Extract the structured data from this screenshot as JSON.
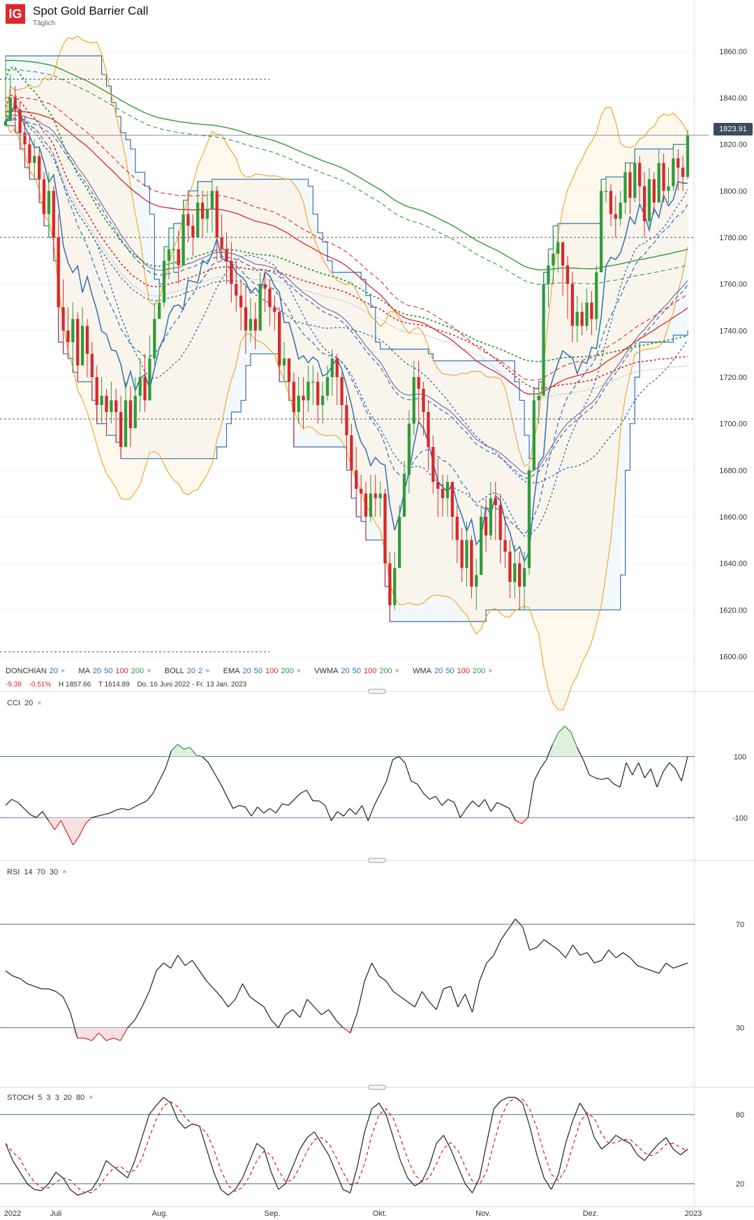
{
  "header": {
    "logo_text": "IG",
    "title": "Spot Gold Barrier Call",
    "subtitle": "Täglich"
  },
  "current_price": "1823.91",
  "legend": {
    "donchian": {
      "label": "DONCHIAN",
      "params": [
        "20"
      ]
    },
    "ma": {
      "label": "MA",
      "params": [
        "20",
        "50",
        "100",
        "200"
      ]
    },
    "boll": {
      "label": "BOLL",
      "params": [
        "20",
        "2"
      ]
    },
    "ema": {
      "label": "EMA",
      "params": [
        "20",
        "50",
        "100",
        "200"
      ]
    },
    "vwma": {
      "label": "VWMA",
      "params": [
        "20",
        "50",
        "100",
        "200"
      ]
    },
    "wma": {
      "label": "WMA",
      "params": [
        "20",
        "50",
        "100",
        "200"
      ]
    },
    "close_icon": "×"
  },
  "stats": {
    "change": "-9.38",
    "change_pct": "-0.51%",
    "high": "H 1857.66",
    "low": "T 1614.89",
    "range": "Do. 16 Juni 2022 - Fr. 13 Jan. 2023"
  },
  "panels": {
    "cci": {
      "label": "CCI",
      "params": [
        "20"
      ]
    },
    "rsi": {
      "label": "RSI",
      "params": [
        "14",
        "70",
        "30"
      ]
    },
    "stoch": {
      "label": "STOCH",
      "params": [
        "5",
        "3",
        "3",
        "20",
        "80"
      ]
    }
  },
  "colors": {
    "up": "#2f9b3a",
    "down": "#d8282a",
    "blue": "#2d6fb5",
    "red": "#d8282a",
    "green": "#2f9b3a",
    "orange": "#f0a830",
    "purple": "#7a6ca8",
    "donchian_fill": "#eaf2fa"
  },
  "chart_data": [
    {
      "type": "candlestick",
      "title": "Spot Gold Barrier Call",
      "ylim": [
        1585,
        1882
      ],
      "y_ticks": [
        1600,
        1620,
        1640,
        1660,
        1680,
        1700,
        1720,
        1740,
        1760,
        1780,
        1800,
        1820,
        1840,
        1860
      ],
      "x_labels": [
        "2022",
        "Juli",
        "Aug.",
        "Sep.",
        "Okt.",
        "Nov.",
        "Dez.",
        "2023"
      ],
      "reference_levels": [
        1848,
        1780,
        1702,
        1602
      ],
      "close": [
        1830,
        1840,
        1835,
        1825,
        1820,
        1812,
        1815,
        1805,
        1790,
        1800,
        1780,
        1750,
        1740,
        1735,
        1745,
        1725,
        1742,
        1730,
        1720,
        1708,
        1712,
        1705,
        1710,
        1705,
        1690,
        1710,
        1698,
        1712,
        1720,
        1710,
        1728,
        1745,
        1752,
        1770,
        1775,
        1775,
        1768,
        1790,
        1785,
        1780,
        1795,
        1788,
        1792,
        1800,
        1780,
        1775,
        1770,
        1760,
        1755,
        1750,
        1740,
        1745,
        1740,
        1760,
        1758,
        1750,
        1748,
        1725,
        1728,
        1718,
        1705,
        1712,
        1710,
        1718,
        1718,
        1708,
        1712,
        1720,
        1728,
        1720,
        1708,
        1695,
        1680,
        1672,
        1670,
        1660,
        1670,
        1668,
        1670,
        1640,
        1622,
        1638,
        1660,
        1678,
        1700,
        1720,
        1715,
        1705,
        1690,
        1675,
        1672,
        1668,
        1675,
        1660,
        1650,
        1638,
        1650,
        1630,
        1635,
        1660,
        1652,
        1668,
        1665,
        1650,
        1645,
        1632,
        1640,
        1630,
        1638,
        1680,
        1710,
        1712,
        1760,
        1768,
        1773,
        1778,
        1768,
        1760,
        1742,
        1748,
        1742,
        1752,
        1745,
        1765,
        1800,
        1800,
        1790,
        1788,
        1795,
        1808,
        1797,
        1812,
        1802,
        1787,
        1805,
        1795,
        1812,
        1800,
        1802,
        1814,
        1810,
        1806,
        1824
      ],
      "high": [
        1858,
        1850,
        1845,
        1838,
        1832,
        1825,
        1822,
        1818,
        1808,
        1808,
        1802,
        1790,
        1762,
        1750,
        1752,
        1748,
        1750,
        1745,
        1735,
        1725,
        1720,
        1715,
        1718,
        1715,
        1712,
        1718,
        1716,
        1720,
        1728,
        1730,
        1738,
        1752,
        1760,
        1776,
        1784,
        1786,
        1783,
        1796,
        1800,
        1790,
        1804,
        1800,
        1800,
        1805,
        1802,
        1790,
        1782,
        1778,
        1770,
        1762,
        1760,
        1754,
        1752,
        1765,
        1765,
        1762,
        1755,
        1750,
        1735,
        1728,
        1722,
        1720,
        1720,
        1725,
        1725,
        1722,
        1718,
        1725,
        1732,
        1730,
        1722,
        1712,
        1700,
        1690,
        1678,
        1675,
        1678,
        1678,
        1675,
        1672,
        1645,
        1645,
        1665,
        1684,
        1706,
        1727,
        1727,
        1718,
        1710,
        1695,
        1685,
        1678,
        1678,
        1675,
        1665,
        1655,
        1658,
        1652,
        1642,
        1665,
        1668,
        1675,
        1675,
        1670,
        1660,
        1650,
        1648,
        1645,
        1645,
        1682,
        1715,
        1718,
        1765,
        1775,
        1785,
        1786,
        1778,
        1772,
        1765,
        1755,
        1752,
        1758,
        1757,
        1768,
        1805,
        1806,
        1803,
        1798,
        1800,
        1812,
        1812,
        1818,
        1815,
        1808,
        1810,
        1808,
        1818,
        1816,
        1810,
        1820,
        1818,
        1815,
        1826
      ],
      "low": [
        1828,
        1830,
        1825,
        1818,
        1810,
        1805,
        1805,
        1795,
        1785,
        1780,
        1770,
        1735,
        1730,
        1728,
        1722,
        1718,
        1725,
        1720,
        1710,
        1700,
        1700,
        1695,
        1700,
        1692,
        1685,
        1690,
        1690,
        1700,
        1705,
        1705,
        1710,
        1725,
        1745,
        1750,
        1762,
        1765,
        1760,
        1770,
        1778,
        1772,
        1782,
        1780,
        1782,
        1782,
        1770,
        1770,
        1760,
        1752,
        1748,
        1740,
        1730,
        1735,
        1732,
        1740,
        1748,
        1742,
        1740,
        1718,
        1718,
        1710,
        1690,
        1700,
        1698,
        1705,
        1708,
        1700,
        1700,
        1710,
        1712,
        1708,
        1700,
        1680,
        1668,
        1660,
        1658,
        1650,
        1658,
        1660,
        1660,
        1630,
        1615,
        1620,
        1640,
        1660,
        1670,
        1695,
        1700,
        1695,
        1680,
        1670,
        1660,
        1660,
        1660,
        1650,
        1640,
        1632,
        1630,
        1625,
        1620,
        1640,
        1645,
        1650,
        1650,
        1640,
        1638,
        1625,
        1625,
        1620,
        1620,
        1635,
        1680,
        1700,
        1720,
        1750,
        1760,
        1765,
        1755,
        1745,
        1735,
        1735,
        1738,
        1740,
        1738,
        1740,
        1765,
        1795,
        1785,
        1780,
        1785,
        1790,
        1790,
        1795,
        1795,
        1780,
        1785,
        1790,
        1795,
        1795,
        1795,
        1800,
        1800,
        1800,
        1805
      ]
    },
    {
      "type": "line",
      "title": "CCI",
      "ylim": [
        -240,
        300
      ],
      "levels": [
        100,
        -100
      ],
      "values": [
        -60,
        -40,
        -50,
        -70,
        -90,
        -100,
        -80,
        -110,
        -140,
        -110,
        -150,
        -190,
        -160,
        -120,
        -100,
        -95,
        -90,
        -85,
        -75,
        -70,
        -75,
        -65,
        -55,
        -45,
        -20,
        20,
        60,
        120,
        140,
        125,
        130,
        105,
        100,
        80,
        45,
        10,
        -30,
        -70,
        -60,
        -65,
        -95,
        -65,
        -85,
        -70,
        -85,
        -55,
        -60,
        -40,
        -20,
        -10,
        -45,
        -45,
        -60,
        -110,
        -80,
        -95,
        -70,
        -90,
        -60,
        -110,
        -60,
        -20,
        20,
        90,
        100,
        80,
        20,
        10,
        -20,
        -40,
        -30,
        -60,
        -40,
        -50,
        -100,
        -70,
        -45,
        -65,
        -40,
        -80,
        -50,
        -60,
        -70,
        -110,
        -120,
        -100,
        20,
        60,
        90,
        140,
        180,
        200,
        180,
        130,
        90,
        40,
        30,
        25,
        30,
        10,
        0,
        80,
        40,
        80,
        30,
        60,
        0,
        50,
        80,
        60,
        20,
        100
      ],
      "x_labels": [
        "2022",
        "Juli",
        "Aug.",
        "Sep.",
        "Okt.",
        "Nov.",
        "Dez.",
        "2023"
      ]
    },
    {
      "type": "line",
      "title": "RSI",
      "ylim": [
        7,
        93
      ],
      "levels": [
        70,
        30
      ],
      "values": [
        52,
        50,
        49,
        47,
        46,
        45,
        45,
        44,
        42,
        36,
        26,
        26,
        25,
        28,
        25,
        26,
        25,
        30,
        33,
        38,
        44,
        52,
        55,
        53,
        58,
        54,
        56,
        52,
        48,
        45,
        42,
        38,
        41,
        47,
        42,
        40,
        38,
        33,
        30,
        35,
        37,
        34,
        41,
        38,
        35,
        37,
        33,
        30,
        28,
        36,
        48,
        55,
        50,
        48,
        44,
        42,
        40,
        38,
        44,
        40,
        37,
        45,
        46,
        38,
        43,
        36,
        48,
        55,
        58,
        64,
        68,
        72,
        69,
        60,
        61,
        64,
        62,
        60,
        57,
        62,
        58,
        59,
        55,
        56,
        60,
        57,
        59,
        57,
        54,
        53,
        52,
        51,
        55,
        53,
        54,
        55
      ],
      "x_labels": [
        "2022",
        "Juli",
        "Aug.",
        "Sep.",
        "Okt.",
        "Nov.",
        "Dez.",
        "2023"
      ]
    },
    {
      "type": "line",
      "title": "STOCH",
      "ylim": [
        0,
        100
      ],
      "levels": [
        80,
        20
      ],
      "k": [
        55,
        40,
        30,
        20,
        15,
        14,
        20,
        30,
        25,
        15,
        10,
        12,
        15,
        25,
        40,
        35,
        30,
        25,
        40,
        60,
        80,
        88,
        95,
        90,
        75,
        68,
        72,
        70,
        50,
        30,
        15,
        10,
        15,
        25,
        40,
        55,
        50,
        30,
        15,
        20,
        35,
        50,
        60,
        65,
        55,
        45,
        30,
        15,
        12,
        35,
        65,
        85,
        90,
        80,
        60,
        40,
        25,
        18,
        22,
        35,
        55,
        62,
        50,
        35,
        20,
        12,
        25,
        55,
        85,
        92,
        95,
        95,
        90,
        70,
        45,
        25,
        15,
        28,
        55,
        75,
        90,
        80,
        60,
        50,
        55,
        62,
        58,
        55,
        45,
        40,
        48,
        55,
        60,
        50,
        45,
        50
      ]
    }
  ]
}
